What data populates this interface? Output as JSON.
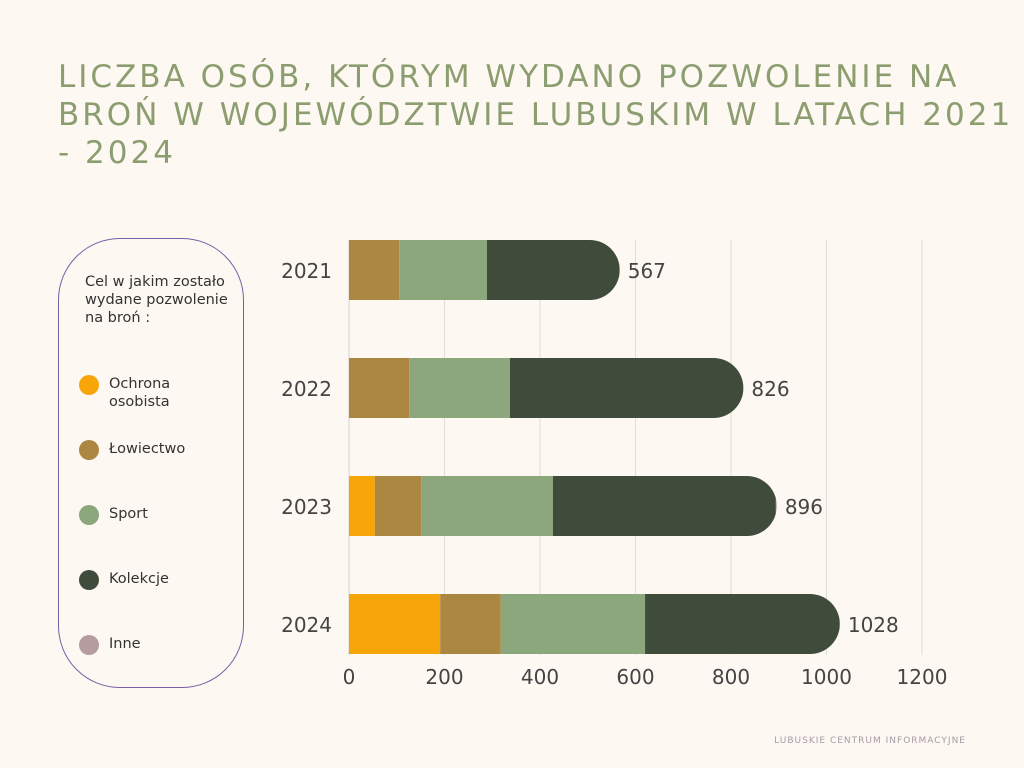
{
  "title": "LICZBA OSÓB, KTÓRYM WYDANO POZWOLENIE NA BROŃ W WOJEWÓDZTWIE LUBUSKIM W LATACH 2021 - 2024",
  "footer": "LUBUSKIE CENTRUM INFORMACYJNE",
  "chart_data": {
    "type": "bar",
    "orientation": "horizontal",
    "stacked": true,
    "title": "LICZBA OSÓB, KTÓRYM WYDANO POZWOLENIE NA BROŃ W WOJEWÓDZTWIE LUBUSKIM W LATACH 2021 - 2024",
    "legend_title": "Cel w jakim zostało wydane pozwolenie na broń :",
    "legend_position": "left",
    "categories": [
      "2021",
      "2022",
      "2023",
      "2024"
    ],
    "totals": [
      "567",
      "826",
      "896",
      "1028"
    ],
    "xlim": [
      0,
      1200
    ],
    "xticks": [
      "0",
      "200",
      "400",
      "600",
      "800",
      "1000",
      "1200"
    ],
    "grid": true,
    "series": [
      {
        "name": "Ochrona osobista",
        "color": "#f7a508",
        "values": [
          0,
          0,
          54,
          191
        ]
      },
      {
        "name": "Łowiectwo",
        "color": "#ab8742",
        "values": [
          105,
          126,
          97,
          127
        ]
      },
      {
        "name": "Sport",
        "color": "#8ca77c",
        "values": [
          184,
          211,
          276,
          302
        ]
      },
      {
        "name": "Kolekcje",
        "color": "#404c3b",
        "values": [
          278,
          489,
          467,
          408
        ]
      },
      {
        "name": "Inne",
        "color": "#b59c9f",
        "values": [
          0,
          0,
          2,
          0
        ]
      }
    ]
  }
}
